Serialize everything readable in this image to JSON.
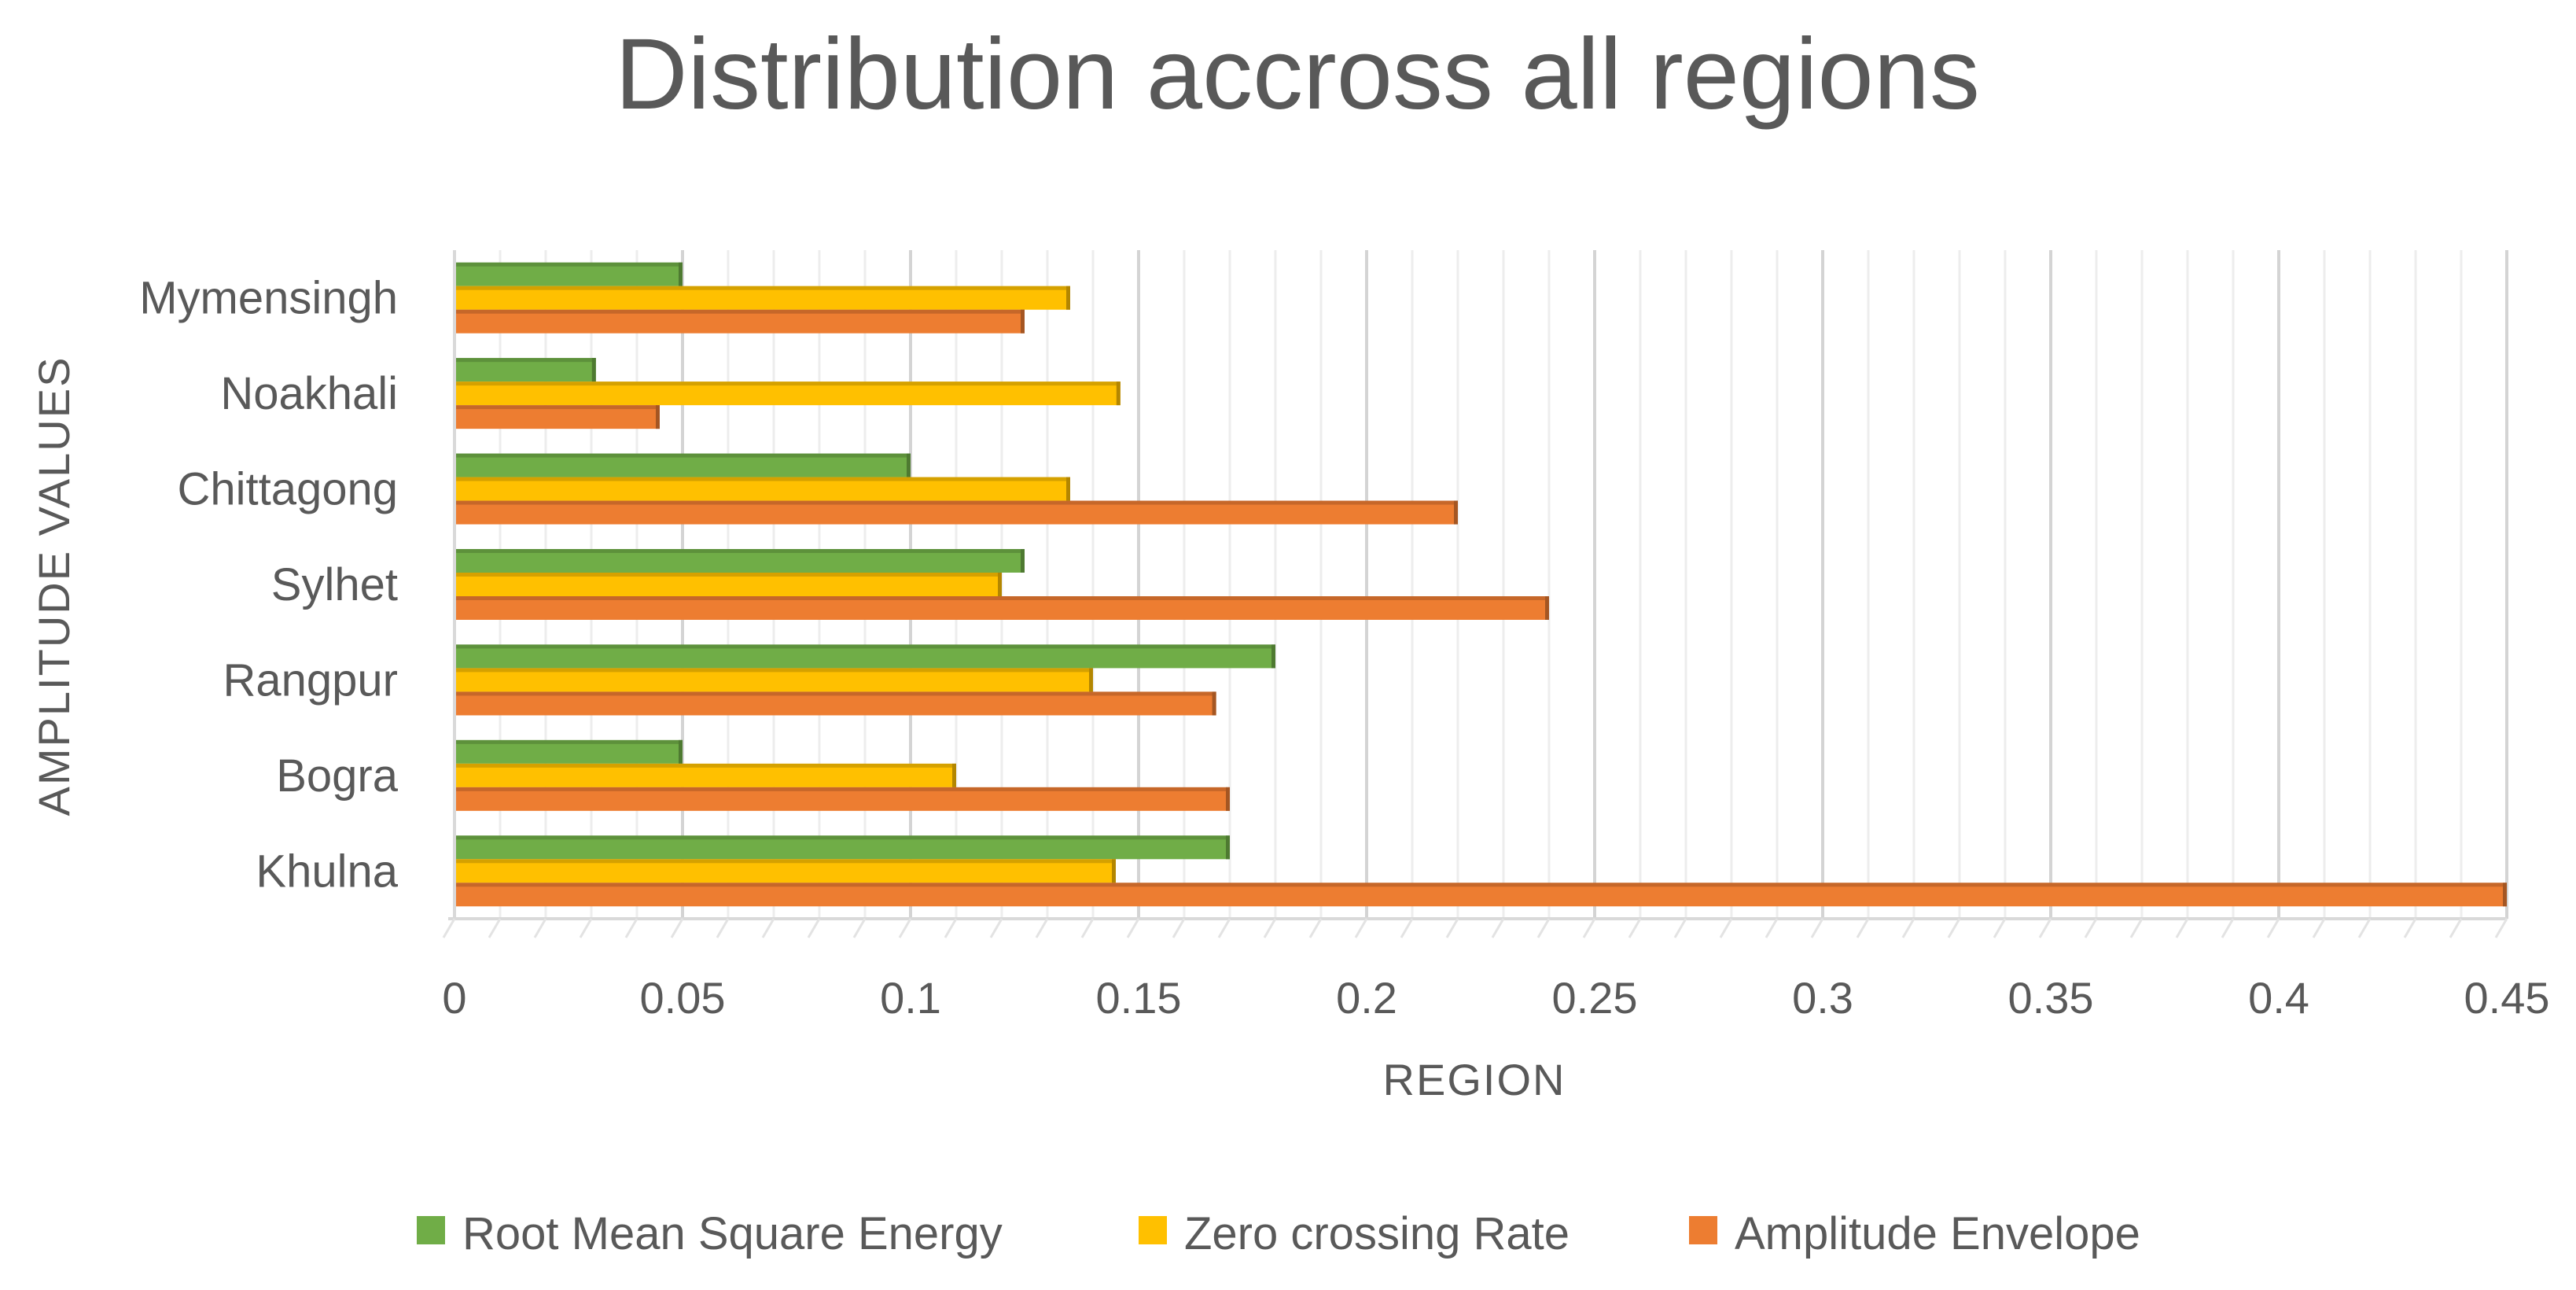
{
  "chart_data": {
    "type": "bar",
    "orientation": "horizontal",
    "title": "Distribution accross all regions",
    "xlabel": "REGION",
    "ylabel": "AMPLITUDE VALUES",
    "xlim": [
      0,
      0.45
    ],
    "xticks": [
      "0",
      "0.05",
      "0.1",
      "0.15",
      "0.2",
      "0.25",
      "0.3",
      "0.35",
      "0.4",
      "0.45"
    ],
    "xtick_values": [
      0,
      0.05,
      0.1,
      0.15,
      0.2,
      0.25,
      0.3,
      0.35,
      0.4,
      0.45
    ],
    "grid": true,
    "legend_position": "bottom",
    "categories": [
      "Khulna",
      "Bogra",
      "Rangpur",
      "Sylhet",
      "Chittagong",
      "Noakhali",
      "Mymensingh"
    ],
    "series": [
      {
        "name": "Root Mean Square Energy",
        "color": "#70AD47",
        "values": [
          0.17,
          0.05,
          0.18,
          0.125,
          0.1,
          0.031,
          0.05
        ]
      },
      {
        "name": "Zero crossing Rate",
        "color": "#FFC000",
        "values": [
          0.145,
          0.11,
          0.14,
          0.12,
          0.135,
          0.146,
          0.135
        ]
      },
      {
        "name": "Amplitude Envelope",
        "color": "#ED7D31",
        "values": [
          0.45,
          0.17,
          0.167,
          0.24,
          0.22,
          0.045,
          0.125
        ]
      }
    ]
  }
}
